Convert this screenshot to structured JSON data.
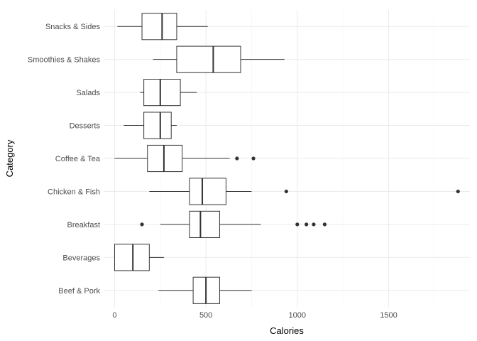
{
  "chart_data": {
    "type": "boxplot",
    "orientation": "horizontal",
    "xlabel": "Calories",
    "ylabel": "Category",
    "xlim": [
      -60,
      1945
    ],
    "x_ticks": [
      0,
      500,
      1000,
      1500
    ],
    "x_tick_labels": [
      "0",
      "500",
      "1000",
      "1500"
    ],
    "grid": true,
    "categories": [
      {
        "name": "Beef & Pork",
        "whisker_low": 240,
        "q1": 430,
        "median": 500,
        "q3": 575,
        "whisker_high": 750,
        "outliers": []
      },
      {
        "name": "Beverages",
        "whisker_low": 0,
        "q1": 0,
        "median": 100,
        "q3": 190,
        "whisker_high": 270,
        "outliers": []
      },
      {
        "name": "Breakfast",
        "whisker_low": 250,
        "q1": 410,
        "median": 470,
        "q3": 575,
        "whisker_high": 800,
        "outliers": [
          150,
          1000,
          1050,
          1090,
          1150
        ]
      },
      {
        "name": "Chicken & Fish",
        "whisker_low": 190,
        "q1": 410,
        "median": 480,
        "q3": 610,
        "whisker_high": 750,
        "outliers": [
          940,
          1880
        ]
      },
      {
        "name": "Coffee & Tea",
        "whisker_low": 0,
        "q1": 180,
        "median": 270,
        "q3": 370,
        "whisker_high": 630,
        "outliers": [
          670,
          760
        ]
      },
      {
        "name": "Desserts",
        "whisker_low": 50,
        "q1": 160,
        "median": 250,
        "q3": 310,
        "whisker_high": 340,
        "outliers": []
      },
      {
        "name": "Salads",
        "whisker_low": 140,
        "q1": 160,
        "median": 250,
        "q3": 360,
        "whisker_high": 450,
        "outliers": []
      },
      {
        "name": "Smoothies & Shakes",
        "whisker_low": 210,
        "q1": 340,
        "median": 540,
        "q3": 690,
        "whisker_high": 930,
        "outliers": []
      },
      {
        "name": "Snacks & Sides",
        "whisker_low": 15,
        "q1": 150,
        "median": 260,
        "q3": 340,
        "whisker_high": 510,
        "outliers": []
      }
    ]
  }
}
